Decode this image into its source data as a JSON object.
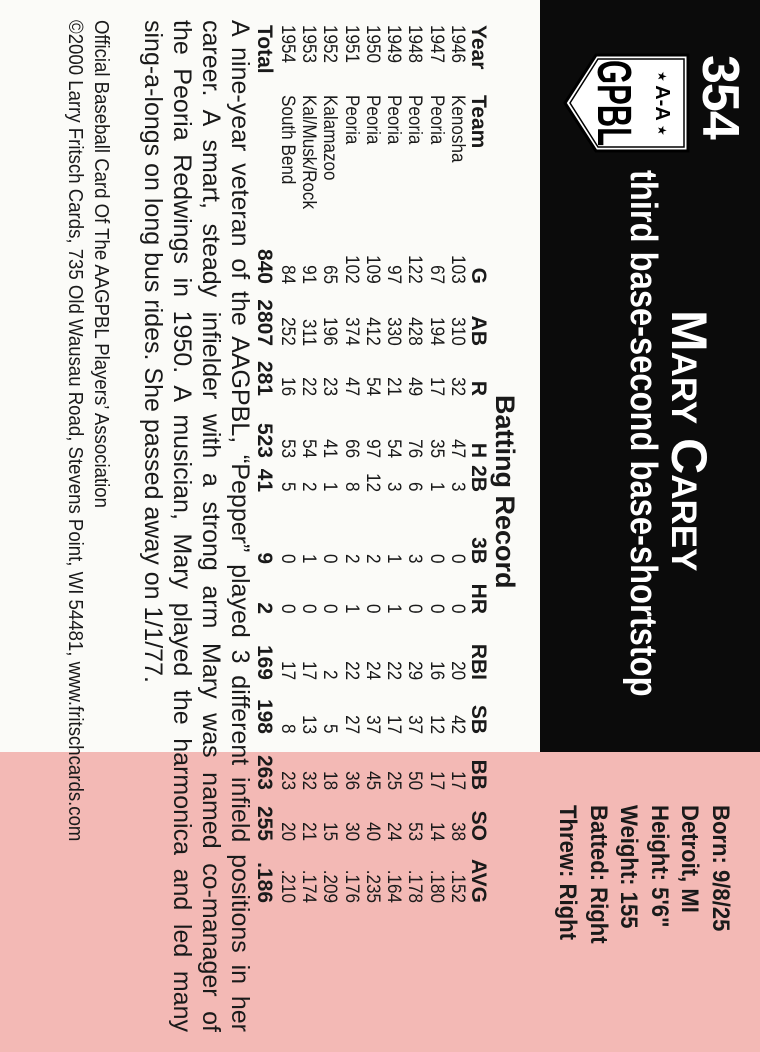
{
  "card": {
    "number": "354",
    "logo_text": {
      "top": "A-A",
      "main": "GPBL"
    },
    "player_name": "Mary Carey",
    "positions": "third base-second base-shortstop",
    "colors": {
      "band": "#0b0b0b",
      "pink": "#f3b9b5",
      "white": "#fbfbf8"
    }
  },
  "info": [
    "Born: 9/8/25",
    "Detroit, MI",
    "Height: 5'6\"",
    "Weight: 155",
    "Batted: Right",
    "Threw: Right"
  ],
  "batting": {
    "title": "Batting Record",
    "headers": [
      "Year",
      "Team",
      "G",
      "AB",
      "R",
      "H",
      "2B",
      "3B",
      "HR",
      "RBI",
      "SB",
      "BB",
      "SO",
      "AVG"
    ],
    "rows": [
      [
        "1946",
        "Kenosha",
        "103",
        "310",
        "32",
        "47",
        "3",
        "0",
        "0",
        "20",
        "42",
        "17",
        "38",
        ".152"
      ],
      [
        "1947",
        "Peoria",
        "67",
        "194",
        "17",
        "35",
        "1",
        "0",
        "0",
        "16",
        "12",
        "17",
        "14",
        ".180"
      ],
      [
        "1948",
        "Peoria",
        "122",
        "428",
        "49",
        "76",
        "6",
        "3",
        "0",
        "29",
        "37",
        "50",
        "53",
        ".178"
      ],
      [
        "1949",
        "Peoria",
        "97",
        "330",
        "21",
        "54",
        "3",
        "1",
        "1",
        "22",
        "17",
        "25",
        "24",
        ".164"
      ],
      [
        "1950",
        "Peoria",
        "109",
        "412",
        "54",
        "97",
        "12",
        "2",
        "0",
        "24",
        "37",
        "45",
        "40",
        ".235"
      ],
      [
        "1951",
        "Peoria",
        "102",
        "374",
        "47",
        "66",
        "8",
        "2",
        "1",
        "22",
        "27",
        "36",
        "30",
        ".176"
      ],
      [
        "1952",
        "Kalamazoo",
        "65",
        "196",
        "23",
        "41",
        "1",
        "0",
        "0",
        "2",
        "5",
        "18",
        "15",
        ".209"
      ],
      [
        "1953",
        "Kal/Musk/Rock",
        "91",
        "311",
        "22",
        "54",
        "2",
        "1",
        "0",
        "17",
        "13",
        "32",
        "21",
        ".174"
      ],
      [
        "1954",
        "South Bend",
        "84",
        "252",
        "16",
        "53",
        "5",
        "0",
        "0",
        "17",
        "8",
        "23",
        "20",
        ".210"
      ]
    ],
    "total": [
      "Total",
      "",
      "840",
      "2807",
      "281",
      "523",
      "41",
      "9",
      "2",
      "169",
      "198",
      "263",
      "255",
      ".186"
    ]
  },
  "bio_lines": [
    "A nine-year veteran of the AAGPBL, “Pepper” played 3 different infield positions in her",
    "career. A smart, steady infielder with a strong arm Mary was named co-manager of",
    "the Peoria Redwings in 1950. A musician, Mary played the harmonica and led many",
    "sing-a-longs on long bus rides. She passed away on 1/1/77."
  ],
  "footer": {
    "line1": "Official Baseball Card Of The AAGPBL Players’ Association",
    "line2": "©2000 Larry Fritsch Cards, 735 Old Wausau Road, Stevens Point, WI 54481, www.fritschcards.com"
  }
}
